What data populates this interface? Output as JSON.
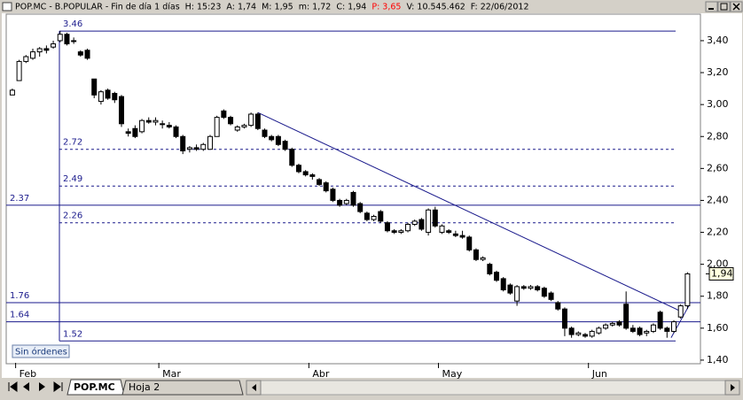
{
  "window": {
    "header": [
      "POP.MC - B.POPULAR - Fin de día 1 días",
      "H: 15:23",
      "A: 1,74",
      "M: 1,95",
      "m: 1,72",
      "C: 1,94",
      {
        "text": "P: 3,65",
        "color": "#ff0000"
      },
      "V: 10.545.462",
      "F: 22/06/2012"
    ],
    "orders_button": "Sin órdenes",
    "tabs": [
      "POP.MC",
      "Hoja 2"
    ]
  },
  "chart_data": {
    "type": "candlestick",
    "up_color": "#ffffff",
    "down_color": "#000000",
    "open": [
      3.06,
      3.15,
      3.27,
      3.29,
      3.33,
      3.35,
      3.36,
      3.4,
      3.44,
      3.4,
      3.33,
      3.34,
      3.16,
      3.02,
      3.09,
      3.07,
      3.05,
      2.83,
      2.85,
      2.83,
      2.9,
      2.89,
      2.88,
      2.87,
      2.86,
      2.8,
      2.72,
      2.73,
      2.72,
      2.72,
      2.8,
      2.96,
      2.92,
      2.84,
      2.86,
      2.87,
      2.94,
      2.84,
      2.8,
      2.8,
      2.77,
      2.72,
      2.62,
      2.58,
      2.56,
      2.53,
      2.51,
      2.47,
      2.4,
      2.38,
      2.45,
      2.38,
      2.32,
      2.28,
      2.33,
      2.26,
      2.21,
      2.2,
      2.21,
      2.25,
      2.28,
      2.2,
      2.34,
      2.2,
      2.21,
      2.19,
      2.18,
      2.17,
      2.09,
      2.03,
      2.0,
      1.95,
      1.91,
      1.87,
      1.77,
      1.86,
      1.85,
      1.86,
      1.85,
      1.82,
      1.76,
      1.72,
      1.6,
      1.56,
      1.56,
      1.55,
      1.57,
      1.6,
      1.62,
      1.64,
      1.75,
      1.6,
      1.6,
      1.57,
      1.58,
      1.7,
      1.6,
      1.58,
      1.67,
      1.74
    ],
    "high": [
      3.1,
      3.28,
      3.31,
      3.35,
      3.36,
      3.37,
      3.4,
      3.46,
      3.45,
      3.42,
      3.34,
      3.35,
      3.16,
      3.09,
      3.1,
      3.08,
      3.06,
      2.85,
      2.87,
      2.91,
      2.92,
      2.92,
      2.9,
      2.89,
      2.87,
      2.81,
      2.74,
      2.75,
      2.76,
      2.81,
      2.93,
      2.97,
      2.93,
      2.87,
      2.88,
      2.95,
      2.95,
      2.85,
      2.81,
      2.81,
      2.78,
      2.73,
      2.63,
      2.59,
      2.57,
      2.54,
      2.52,
      2.48,
      2.41,
      2.41,
      2.46,
      2.39,
      2.33,
      2.31,
      2.34,
      2.27,
      2.22,
      2.22,
      2.26,
      2.28,
      2.29,
      2.35,
      2.36,
      2.25,
      2.22,
      2.21,
      2.21,
      2.18,
      2.1,
      2.05,
      2.01,
      1.96,
      1.92,
      1.88,
      1.87,
      1.87,
      1.87,
      1.87,
      1.86,
      1.83,
      1.77,
      1.73,
      1.61,
      1.58,
      1.57,
      1.59,
      1.61,
      1.63,
      1.64,
      1.65,
      1.83,
      1.62,
      1.61,
      1.59,
      1.63,
      1.71,
      1.61,
      1.65,
      1.75,
      1.95
    ],
    "low": [
      3.06,
      3.15,
      3.26,
      3.28,
      3.3,
      3.32,
      3.35,
      3.39,
      3.37,
      3.38,
      3.3,
      3.28,
      3.04,
      3.0,
      3.03,
      3.01,
      2.86,
      2.8,
      2.79,
      2.82,
      2.88,
      2.87,
      2.85,
      2.85,
      2.79,
      2.69,
      2.7,
      2.71,
      2.71,
      2.72,
      2.8,
      2.91,
      2.87,
      2.83,
      2.85,
      2.86,
      2.84,
      2.79,
      2.77,
      2.74,
      2.71,
      2.61,
      2.57,
      2.55,
      2.53,
      2.49,
      2.45,
      2.39,
      2.36,
      2.37,
      2.36,
      2.32,
      2.27,
      2.27,
      2.26,
      2.2,
      2.19,
      2.19,
      2.2,
      2.24,
      2.21,
      2.18,
      2.23,
      2.19,
      2.19,
      2.17,
      2.16,
      2.08,
      2.02,
      2.02,
      1.93,
      1.89,
      1.83,
      1.81,
      1.74,
      1.84,
      1.84,
      1.83,
      1.79,
      1.77,
      1.71,
      1.55,
      1.54,
      1.55,
      1.54,
      1.54,
      1.56,
      1.59,
      1.61,
      1.61,
      1.59,
      1.57,
      1.55,
      1.55,
      1.57,
      1.59,
      1.54,
      1.57,
      1.66,
      1.72
    ],
    "close": [
      3.09,
      3.27,
      3.3,
      3.33,
      3.35,
      3.34,
      3.38,
      3.44,
      3.38,
      3.4,
      3.31,
      3.29,
      3.06,
      3.08,
      3.04,
      3.03,
      2.88,
      2.82,
      2.8,
      2.9,
      2.89,
      2.9,
      2.88,
      2.86,
      2.8,
      2.71,
      2.73,
      2.72,
      2.75,
      2.8,
      2.92,
      2.92,
      2.88,
      2.86,
      2.87,
      2.94,
      2.85,
      2.8,
      2.78,
      2.75,
      2.72,
      2.62,
      2.58,
      2.56,
      2.55,
      2.5,
      2.46,
      2.4,
      2.37,
      2.4,
      2.37,
      2.33,
      2.28,
      2.3,
      2.27,
      2.21,
      2.2,
      2.21,
      2.25,
      2.27,
      2.22,
      2.34,
      2.24,
      2.24,
      2.2,
      2.18,
      2.17,
      2.09,
      2.03,
      2.04,
      1.94,
      1.9,
      1.84,
      1.82,
      1.86,
      1.85,
      1.86,
      1.84,
      1.8,
      1.78,
      1.72,
      1.6,
      1.56,
      1.57,
      1.55,
      1.58,
      1.6,
      1.62,
      1.63,
      1.62,
      1.6,
      1.58,
      1.56,
      1.58,
      1.62,
      1.6,
      1.58,
      1.64,
      1.74,
      1.94
    ],
    "xlim": [
      -0.9,
      100.9
    ],
    "xticks": [
      {
        "value": 1,
        "label": "Feb"
      },
      {
        "value": 22,
        "label": "Mar"
      },
      {
        "value": 44,
        "label": "Abr"
      },
      {
        "value": 63,
        "label": "May"
      },
      {
        "value": 85,
        "label": "Jun"
      }
    ],
    "ylim": [
      1.383,
      3.566
    ],
    "yticks": [
      {
        "value": 1.4,
        "label": "1,40"
      },
      {
        "value": 1.6,
        "label": "1,60"
      },
      {
        "value": 1.8,
        "label": "1,80"
      },
      {
        "value": 2.0,
        "label": "2,00"
      },
      {
        "value": 2.2,
        "label": "2,20"
      },
      {
        "value": 2.4,
        "label": "2,40"
      },
      {
        "value": 2.6,
        "label": "2,60"
      },
      {
        "value": 2.8,
        "label": "2,80"
      },
      {
        "value": 3.0,
        "label": "3,00"
      },
      {
        "value": 3.2,
        "label": "3,20"
      },
      {
        "value": 3.4,
        "label": "3,40"
      }
    ],
    "levels": [
      {
        "value": 3.46,
        "dashed": false,
        "full": false
      },
      {
        "value": 2.72,
        "dashed": true,
        "full": false
      },
      {
        "value": 2.49,
        "dashed": true,
        "full": false
      },
      {
        "value": 2.26,
        "dashed": true,
        "full": false
      },
      {
        "value": 2.37,
        "dashed": false,
        "full": true
      },
      {
        "value": 1.76,
        "dashed": false,
        "full": true
      },
      {
        "value": 1.64,
        "dashed": false,
        "full": true
      },
      {
        "value": 1.52,
        "dashed": false,
        "full": false
      }
    ],
    "line_color": "#1a1a8c",
    "trendlines": [
      {
        "x": [
          36,
          98.3
        ],
        "y": [
          2.95,
          1.7
        ]
      },
      {
        "x": [
          96.6,
          99.2
        ],
        "y": [
          1.54,
          1.74
        ]
      }
    ],
    "last_price": {
      "value": 1.94,
      "label": "1,94"
    }
  }
}
